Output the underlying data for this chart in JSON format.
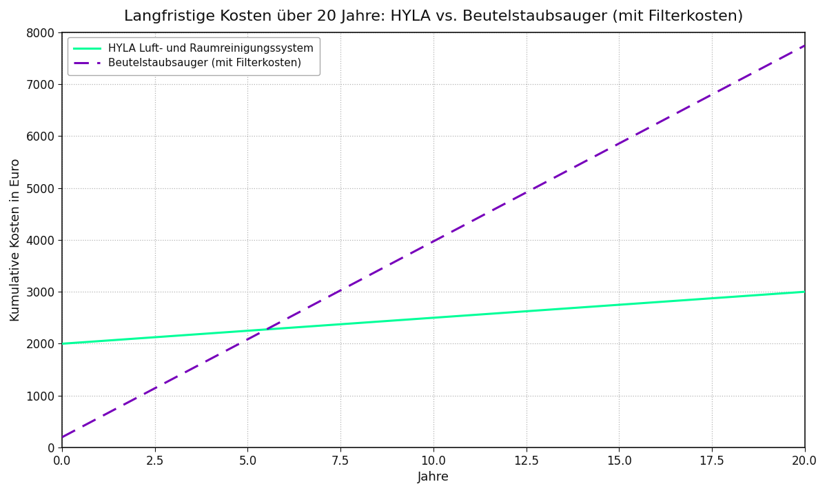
{
  "title": "Langfristige Kosten über 20 Jahre: HYLA vs. Beutelstaubsauger (mit Filterkosten)",
  "xlabel": "Jahre",
  "ylabel": "Kumulative Kosten in Euro",
  "years": 20,
  "hyla_initial": 2000,
  "hyla_annual": 50,
  "beutel_initial": 200,
  "beutel_annual": 377,
  "hyla_color": "#00ff99",
  "beutel_color": "#7700bb",
  "hyla_label": "HYLA Luft- und Raumreinigungssystem",
  "beutel_label": "Beutelstaubsauger (mit Filterkosten)",
  "ylim": [
    0,
    8000
  ],
  "xlim": [
    0,
    20
  ],
  "background_color": "#ffffff",
  "plot_bg_color": "#ffffff",
  "grid_color": "#aaaaaa",
  "text_color": "#111111",
  "spine_color": "#111111",
  "title_fontsize": 16,
  "label_fontsize": 13,
  "tick_fontsize": 12,
  "legend_fontsize": 11,
  "line_width": 2.2
}
